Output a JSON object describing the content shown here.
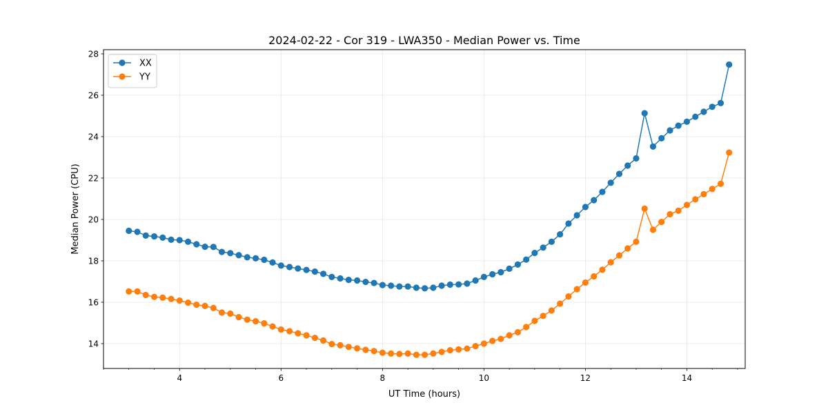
{
  "chart_data": {
    "type": "line",
    "title": "2024-02-22 - Cor 319 - LWA350 - Median Power vs. Time",
    "xlabel": "UT Time (hours)",
    "ylabel": "Median Power (CPU)",
    "xlim": [
      2.5,
      15.15
    ],
    "ylim": [
      12.8,
      28.2
    ],
    "xticks": [
      4,
      6,
      8,
      10,
      12,
      14
    ],
    "yticks": [
      14,
      16,
      18,
      20,
      22,
      24,
      26,
      28
    ],
    "xminor_step": 0.5,
    "grid": true,
    "legend": "top-left",
    "x": [
      3.0,
      3.167,
      3.333,
      3.5,
      3.667,
      3.833,
      4.0,
      4.167,
      4.333,
      4.5,
      4.667,
      4.833,
      5.0,
      5.167,
      5.333,
      5.5,
      5.667,
      5.833,
      6.0,
      6.167,
      6.333,
      6.5,
      6.667,
      6.833,
      7.0,
      7.167,
      7.333,
      7.5,
      7.667,
      7.833,
      8.0,
      8.167,
      8.333,
      8.5,
      8.667,
      8.833,
      9.0,
      9.167,
      9.333,
      9.5,
      9.667,
      9.833,
      10.0,
      10.167,
      10.333,
      10.5,
      10.667,
      10.833,
      11.0,
      11.167,
      11.333,
      11.5,
      11.667,
      11.833,
      12.0,
      12.167,
      12.333,
      12.5,
      12.667,
      12.833,
      13.0,
      13.167,
      13.333,
      13.5,
      13.667,
      13.833,
      14.0,
      14.167,
      14.333,
      14.5,
      14.667,
      14.833
    ],
    "series": [
      {
        "name": "XX",
        "color": "#1f77b4",
        "values": [
          19.45,
          19.4,
          19.22,
          19.18,
          19.12,
          19.02,
          19.0,
          18.92,
          18.8,
          18.68,
          18.67,
          18.43,
          18.37,
          18.27,
          18.17,
          18.12,
          18.05,
          17.92,
          17.77,
          17.7,
          17.63,
          17.56,
          17.48,
          17.37,
          17.22,
          17.15,
          17.08,
          17.05,
          16.98,
          16.93,
          16.83,
          16.8,
          16.76,
          16.76,
          16.7,
          16.67,
          16.7,
          16.8,
          16.85,
          16.86,
          16.9,
          17.05,
          17.22,
          17.35,
          17.45,
          17.62,
          17.82,
          18.06,
          18.38,
          18.64,
          18.92,
          19.28,
          19.8,
          20.2,
          20.6,
          20.93,
          21.33,
          21.77,
          22.2,
          22.6,
          22.95,
          25.13,
          23.52,
          23.92,
          24.3,
          24.53,
          24.72,
          24.96,
          25.2,
          25.44,
          25.62,
          27.48
        ]
      },
      {
        "name": "YY",
        "color": "#ff7f0e",
        "values": [
          16.52,
          16.52,
          16.35,
          16.26,
          16.22,
          16.16,
          16.08,
          15.98,
          15.88,
          15.82,
          15.72,
          15.5,
          15.45,
          15.28,
          15.16,
          15.08,
          14.98,
          14.83,
          14.68,
          14.6,
          14.5,
          14.4,
          14.28,
          14.15,
          13.98,
          13.92,
          13.84,
          13.77,
          13.7,
          13.64,
          13.56,
          13.52,
          13.5,
          13.52,
          13.46,
          13.46,
          13.52,
          13.6,
          13.68,
          13.72,
          13.76,
          13.88,
          14.0,
          14.13,
          14.23,
          14.4,
          14.55,
          14.8,
          15.1,
          15.34,
          15.6,
          15.93,
          16.28,
          16.63,
          16.95,
          17.25,
          17.57,
          17.93,
          18.26,
          18.6,
          18.92,
          20.52,
          19.5,
          19.88,
          20.25,
          20.42,
          20.7,
          20.97,
          21.22,
          21.47,
          21.72,
          23.23
        ]
      }
    ]
  }
}
